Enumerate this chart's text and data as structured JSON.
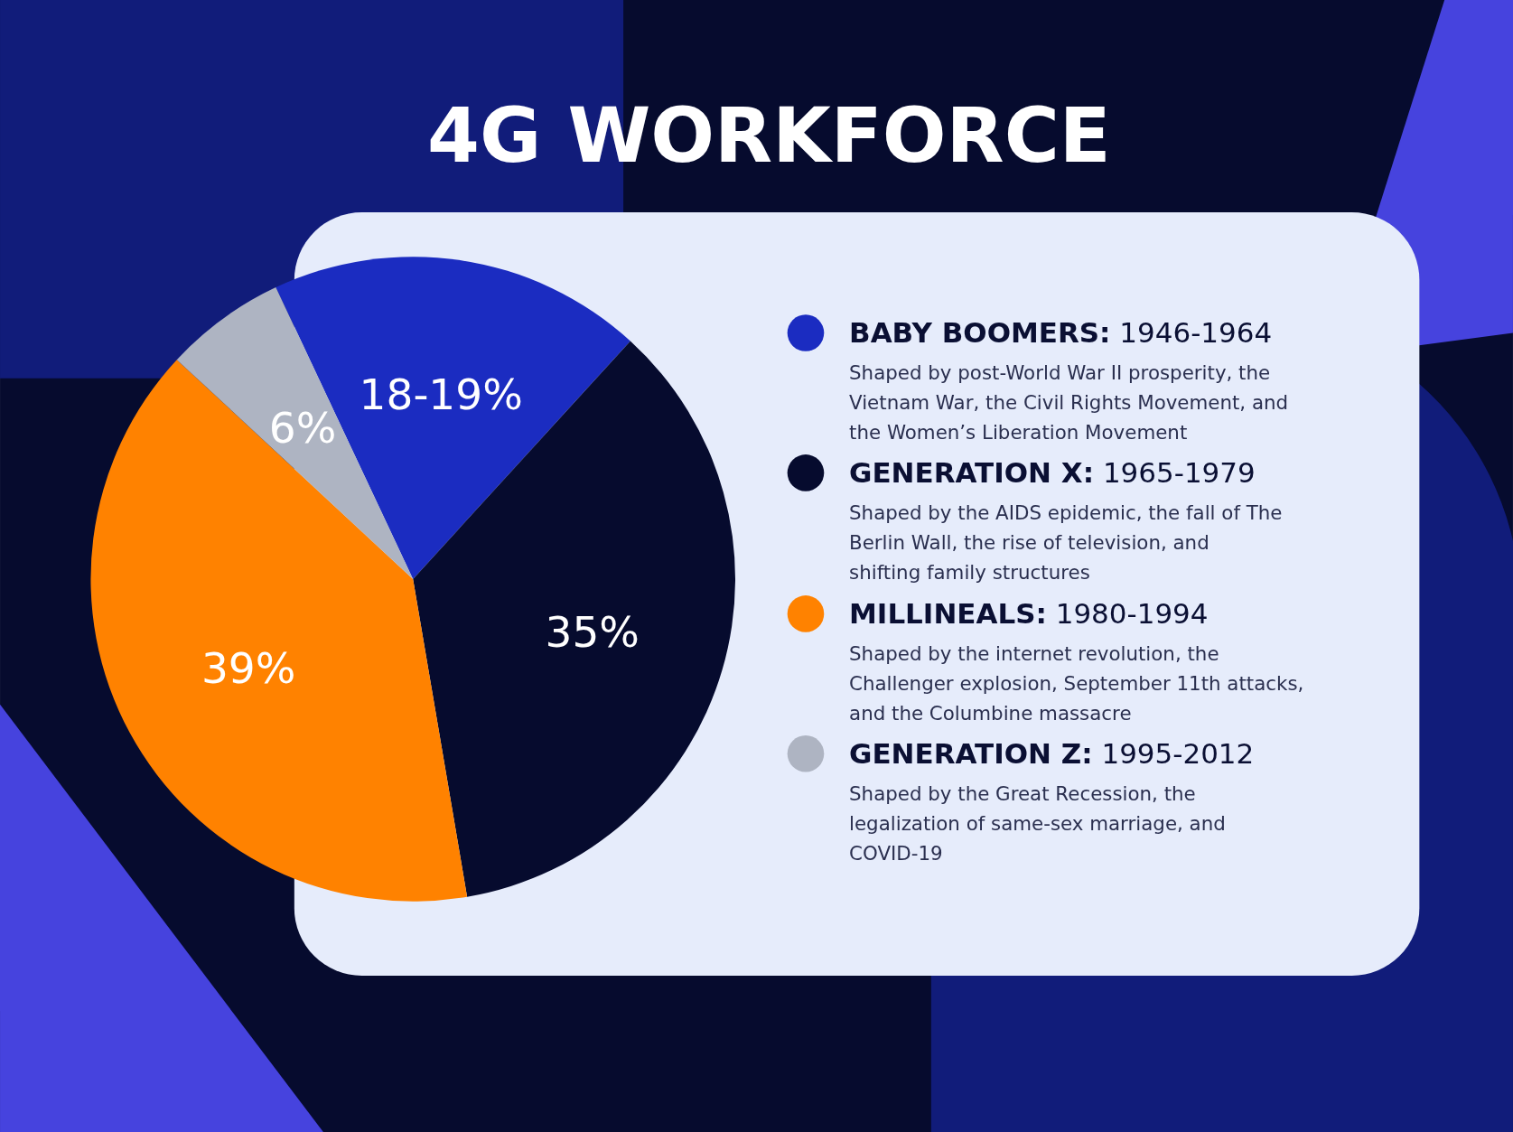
{
  "chart_data": {
    "type": "pie",
    "title": "4G WORKFORCE",
    "categories": [
      "BABY BOOMERS: 1946-1964",
      "GENERATION X: 1965-1979",
      "MILLINEALS: 1980-1994",
      "GENERATION Z: 1995-2012"
    ],
    "values": [
      18.5,
      35,
      39,
      6
    ],
    "value_labels": [
      "18-19%",
      "35%",
      "39%",
      "6%"
    ],
    "colors": [
      "#1b2cc1",
      "#060b2e",
      "#ff8200",
      "#aeb4c2"
    ],
    "legend": "right",
    "annotations": [
      "Shaped by post-World War II prosperity, the Vietnam War, the Civil Rights Movement,  and the Women’s Liberation Movement",
      "Shaped by the AIDS epidemic, the fall of The Berlin Wall,  the rise of television, and shifting family structures",
      "Shaped by the internet revolution,  the Challenger explosion, September 11th attacks, and the Columbine massacre",
      "Shaped by the Great Recession, the legalization of same-sex marriage, and COVID-19"
    ]
  }
}
